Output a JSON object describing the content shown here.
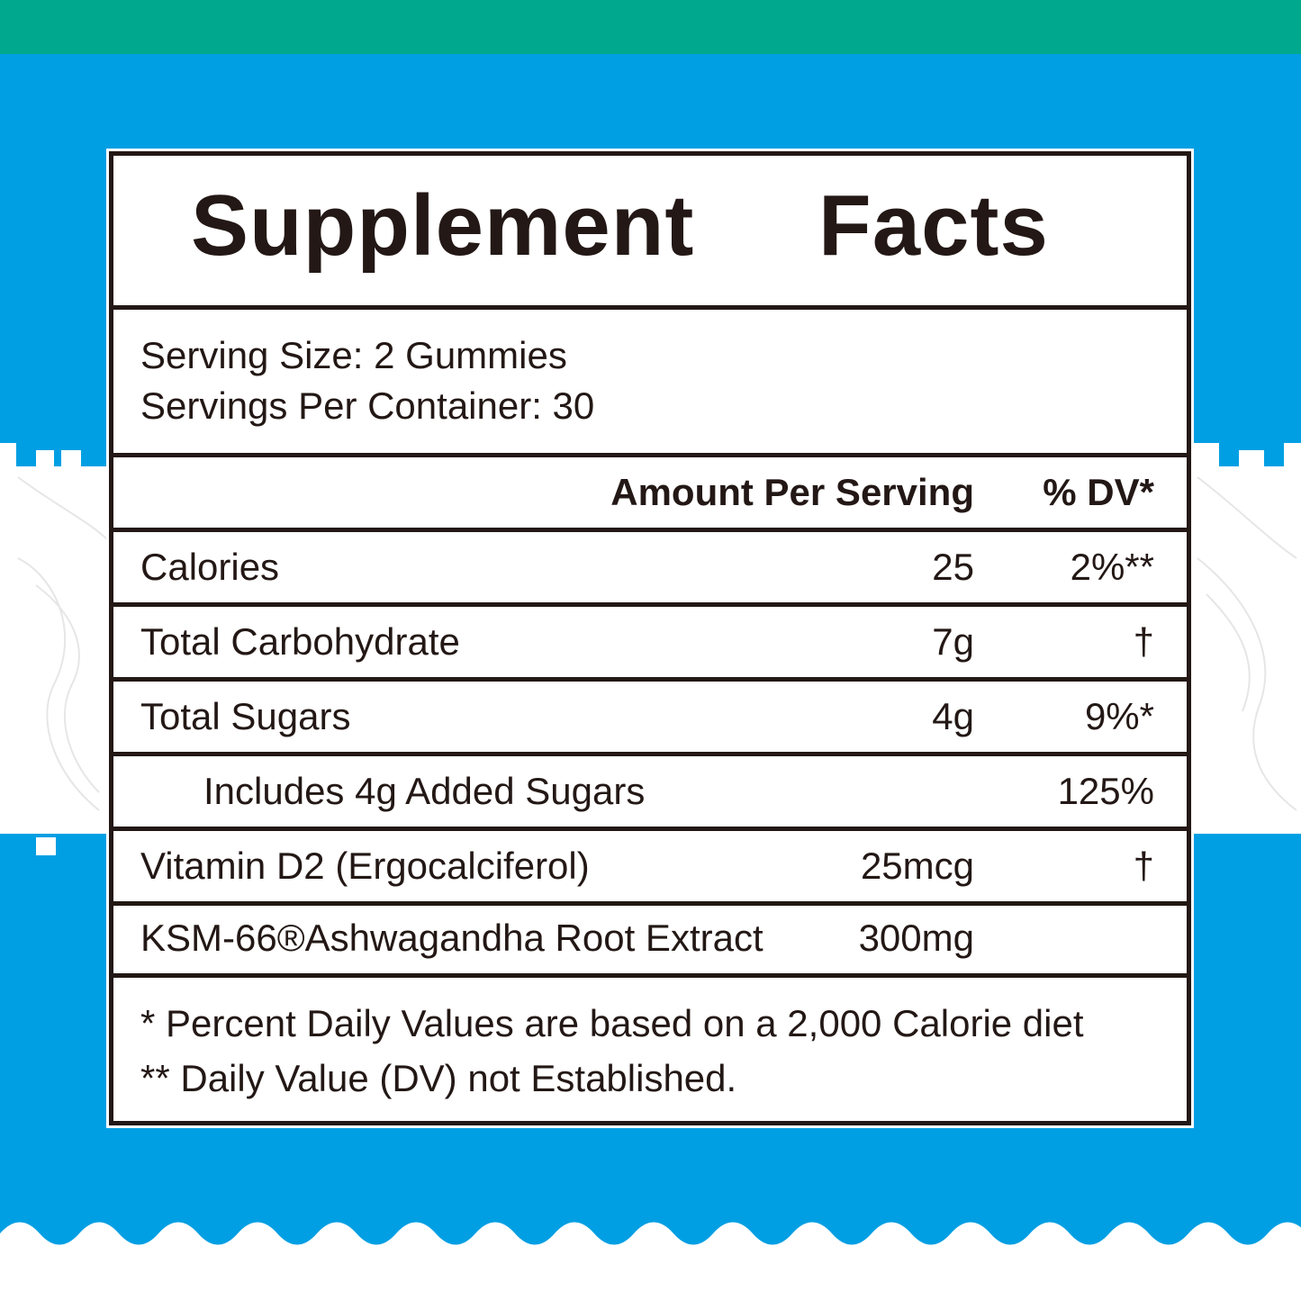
{
  "label": {
    "title": "Supplement Facts",
    "serving_size": "Serving Size: 2 Gummies",
    "servings_per_container": "Servings Per Container: 30",
    "header": {
      "amount": "Amount Per Serving",
      "dv": "% DV*"
    },
    "rows": [
      {
        "name": "Calories",
        "amount": "25",
        "dv": "2%**"
      },
      {
        "name": "Total Carbohydrate",
        "amount": "7g",
        "dv": "†"
      },
      {
        "name": "Total Sugars",
        "amount": "4g",
        "dv": "9%*"
      },
      {
        "name": "Includes 4g Added Sugars",
        "amount": "",
        "dv": "125%"
      },
      {
        "name": "Vitamin D2 (Ergocalciferol)",
        "amount": "25mcg",
        "dv": "†"
      },
      {
        "name": "KSM-66®Ashwagandha Root Extract",
        "amount": "300mg",
        "dv": ""
      }
    ],
    "footnotes": [
      "* Percent Daily Values are based on a 2,000 Calorie diet",
      "** Daily Value (DV) not Established."
    ]
  },
  "colors": {
    "top_band": "#00a88d",
    "background": "#009fe3",
    "panel": "#ffffff",
    "ink": "#231815"
  }
}
